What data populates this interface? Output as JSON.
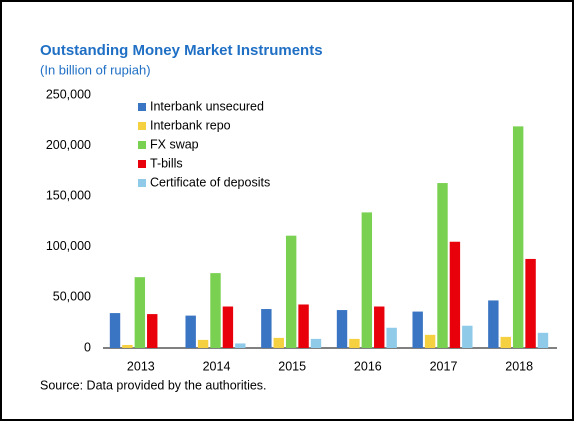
{
  "chart_data": {
    "type": "bar",
    "title": "Outstanding Money Market Instruments",
    "subtitle": "(In billion of rupiah)",
    "source": "Source: Data provided by the authorities.",
    "categories": [
      "2013",
      "2014",
      "2015",
      "2016",
      "2017",
      "2018"
    ],
    "series": [
      {
        "name": "Interbank unsecured",
        "color": "#3a75c4",
        "values": [
          34500,
          32000,
          38500,
          37500,
          36000,
          47000
        ]
      },
      {
        "name": "Interbank repo",
        "color": "#f5d040",
        "values": [
          3000,
          8000,
          10000,
          9000,
          13000,
          11000
        ]
      },
      {
        "name": "FX swap",
        "color": "#7ad151",
        "values": [
          70000,
          74000,
          111000,
          134000,
          163000,
          219000
        ]
      },
      {
        "name": "T-bills",
        "color": "#e8000b",
        "values": [
          33500,
          41000,
          43000,
          41000,
          105000,
          88000
        ]
      },
      {
        "name": "Certificate of deposits",
        "color": "#8fcbe8",
        "values": [
          0,
          4500,
          9000,
          20000,
          22000,
          15000
        ]
      }
    ],
    "ylim": [
      0,
      250000
    ],
    "yticks": [
      0,
      {
        "value": 50000,
        "label": "50,000"
      },
      {
        "value": 100000,
        "label": "100,000"
      },
      {
        "value": 150000,
        "label": "150,000"
      },
      {
        "value": 200000,
        "label": "200,000"
      },
      {
        "value": 250000,
        "label": "250,000"
      }
    ],
    "legend": "top-left"
  }
}
